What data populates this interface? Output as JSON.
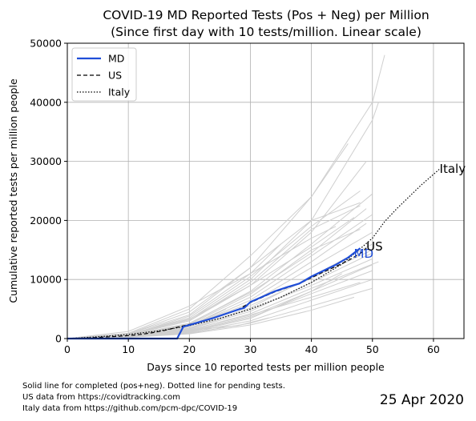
{
  "chart_data": {
    "type": "line",
    "title_line1": "COVID-19 MD Reported Tests (Pos + Neg) per Million",
    "title_line2": "(Since first day with 10 tests/million. Linear scale)",
    "xlabel": "Days since 10 reported tests per million people",
    "ylabel": "Cumulative reported tests per million people",
    "xlim": [
      0,
      65
    ],
    "ylim": [
      0,
      50000
    ],
    "xticks": [
      0,
      10,
      20,
      30,
      40,
      50,
      60
    ],
    "yticks": [
      0,
      10000,
      20000,
      30000,
      40000,
      50000
    ],
    "grid": true,
    "legend_position": "top-left",
    "legend": [
      "MD",
      "US",
      "Italy"
    ],
    "series": [
      {
        "name": "MD",
        "color": "#1f4ed8",
        "style": "solid",
        "end_label": "MD",
        "x": [
          0,
          2,
          4,
          6,
          8,
          10,
          12,
          14,
          16,
          18,
          19,
          20,
          22,
          24,
          26,
          28,
          29,
          30,
          32,
          34,
          36,
          38,
          40,
          42,
          44,
          46,
          47,
          48
        ],
        "y": [
          0,
          0,
          0,
          0,
          0,
          0,
          0,
          0,
          0,
          0,
          2000,
          2300,
          2900,
          3500,
          4200,
          4900,
          5200,
          6200,
          7100,
          8000,
          8700,
          9300,
          10500,
          11500,
          12500,
          13700,
          14500,
          15300
        ]
      },
      {
        "name": "US",
        "color": "#000000",
        "style": "dashed",
        "end_label": "US",
        "x": [
          0,
          4,
          8,
          10,
          12,
          14,
          16,
          18,
          20,
          22,
          24,
          26,
          28,
          30,
          32,
          34,
          36,
          38,
          40,
          42,
          44,
          46,
          48,
          49
        ],
        "y": [
          0,
          150,
          350,
          500,
          700,
          1000,
          1400,
          1900,
          2400,
          2900,
          3500,
          4200,
          4900,
          6100,
          7000,
          7900,
          8600,
          9300,
          10300,
          11300,
          12200,
          13200,
          14400,
          15300
        ]
      },
      {
        "name": "Italy",
        "color": "#000000",
        "style": "dotted",
        "end_label": "Italy",
        "x": [
          0,
          5,
          10,
          15,
          20,
          25,
          30,
          35,
          40,
          45,
          48,
          50,
          52,
          54,
          56,
          58,
          60,
          61
        ],
        "y": [
          0,
          300,
          700,
          1300,
          2200,
          3400,
          5000,
          7000,
          9500,
          12600,
          15200,
          17000,
          19800,
          22000,
          24000,
          26000,
          27800,
          28700
        ]
      }
    ],
    "background_series": [
      {
        "x": [
          0,
          10,
          20,
          30,
          40,
          50,
          52
        ],
        "y": [
          0,
          800,
          4000,
          12000,
          24000,
          40000,
          48000
        ]
      },
      {
        "x": [
          0,
          10,
          20,
          30,
          40,
          50,
          51
        ],
        "y": [
          0,
          700,
          3200,
          10000,
          20000,
          37000,
          40000
        ]
      },
      {
        "x": [
          0,
          10,
          20,
          30,
          40,
          46
        ],
        "y": [
          0,
          900,
          5000,
          14000,
          24000,
          33000
        ]
      },
      {
        "x": [
          0,
          10,
          20,
          30,
          40,
          49
        ],
        "y": [
          0,
          600,
          3000,
          9000,
          18000,
          30000
        ]
      },
      {
        "x": [
          0,
          10,
          20,
          30,
          40,
          48
        ],
        "y": [
          0,
          700,
          3500,
          10500,
          19000,
          25000
        ]
      },
      {
        "x": [
          0,
          10,
          20,
          30,
          40,
          50
        ],
        "y": [
          0,
          500,
          2500,
          8000,
          16000,
          24500
        ]
      },
      {
        "x": [
          0,
          10,
          20,
          30,
          40,
          48
        ],
        "y": [
          0,
          600,
          3000,
          9500,
          18500,
          22500
        ]
      },
      {
        "x": [
          0,
          10,
          20,
          30,
          40,
          50
        ],
        "y": [
          0,
          500,
          2200,
          7000,
          14000,
          21000
        ]
      },
      {
        "x": [
          0,
          10,
          20,
          30,
          40,
          49
        ],
        "y": [
          0,
          400,
          2000,
          6500,
          13000,
          19500
        ]
      },
      {
        "x": [
          0,
          10,
          20,
          30,
          40,
          50
        ],
        "y": [
          0,
          450,
          2100,
          6000,
          12000,
          18000
        ]
      },
      {
        "x": [
          0,
          10,
          20,
          30,
          40,
          50
        ],
        "y": [
          0,
          400,
          1800,
          5200,
          10500,
          16000
        ]
      },
      {
        "x": [
          0,
          10,
          20,
          30,
          40,
          50
        ],
        "y": [
          0,
          350,
          1600,
          4600,
          9500,
          14500
        ]
      },
      {
        "x": [
          0,
          10,
          20,
          30,
          40,
          51
        ],
        "y": [
          0,
          300,
          1400,
          4200,
          8500,
          13000
        ]
      },
      {
        "x": [
          0,
          10,
          20,
          30,
          40,
          50
        ],
        "y": [
          0,
          300,
          1200,
          3600,
          7600,
          11500
        ]
      },
      {
        "x": [
          0,
          10,
          20,
          30,
          40,
          50
        ],
        "y": [
          0,
          250,
          1000,
          3000,
          6500,
          10000
        ]
      },
      {
        "x": [
          0,
          10,
          20,
          30,
          40,
          50
        ],
        "y": [
          0,
          200,
          900,
          2600,
          5500,
          8500
        ]
      },
      {
        "x": [
          0,
          10,
          20,
          30,
          40,
          47
        ],
        "y": [
          0,
          200,
          800,
          2300,
          4800,
          7000
        ]
      },
      {
        "x": [
          0,
          10,
          20,
          30,
          40,
          45
        ],
        "y": [
          0,
          250,
          1100,
          3400,
          8000,
          11000
        ]
      },
      {
        "x": [
          0,
          10,
          20,
          30,
          35
        ],
        "y": [
          0,
          1200,
          5500,
          11000,
          16000
        ]
      },
      {
        "x": [
          0,
          10,
          20,
          30,
          40,
          48
        ],
        "y": [
          0,
          800,
          4500,
          12000,
          20000,
          23000
        ]
      },
      {
        "x": [
          0,
          10,
          20,
          30,
          40,
          44
        ],
        "y": [
          0,
          600,
          3800,
          11000,
          17000,
          19000
        ]
      },
      {
        "x": [
          0,
          10,
          20,
          30,
          40,
          48
        ],
        "y": [
          0,
          350,
          1500,
          4000,
          7000,
          9500
        ]
      },
      {
        "x": [
          0,
          10,
          20,
          30,
          40,
          50
        ],
        "y": [
          0,
          300,
          1300,
          3800,
          8000,
          12500
        ]
      },
      {
        "x": [
          0,
          10,
          20,
          30,
          40,
          48
        ],
        "y": [
          0,
          500,
          2400,
          7500,
          15000,
          18500
        ]
      },
      {
        "x": [
          0,
          10,
          20,
          30,
          40,
          50
        ],
        "y": [
          0,
          450,
          2000,
          5600,
          10200,
          15000
        ]
      },
      {
        "x": [
          0,
          10,
          20,
          30,
          40,
          50
        ],
        "y": [
          0,
          400,
          1700,
          4900,
          9000,
          13500
        ]
      },
      {
        "x": [
          0,
          8,
          15,
          21,
          28,
          33
        ],
        "y": [
          0,
          200,
          800,
          1500,
          2200,
          3500
        ]
      },
      {
        "x": [
          0,
          10,
          20,
          26
        ],
        "y": [
          0,
          400,
          2000,
          5000
        ]
      },
      {
        "x": [
          0,
          10,
          20,
          22
        ],
        "y": [
          0,
          300,
          900,
          1200
        ]
      },
      {
        "x": [
          0,
          10,
          20,
          30,
          40,
          47
        ],
        "y": [
          0,
          700,
          3300,
          9000,
          15500,
          20500
        ]
      },
      {
        "x": [
          0,
          10,
          20,
          30,
          40,
          49
        ],
        "y": [
          0,
          550,
          2600,
          7800,
          14500,
          22000
        ]
      }
    ]
  },
  "footnotes": [
    "Solid line for completed (pos+neg). Dotted line for pending tests.",
    "US data from https://covidtracking.com",
    "Italy data from https://github.com/pcm-dpc/COVID-19"
  ],
  "date_stamp": "25 Apr 2020"
}
